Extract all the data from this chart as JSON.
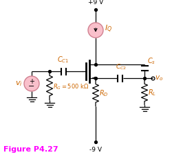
{
  "title": "Figure P4.27",
  "title_color": "#FF00FF",
  "bg_color": "#FFFFFF",
  "line_color": "#000000",
  "pink_fill": "#F9C0CB",
  "pink_stroke": "#D08090",
  "label_color": "#CC6600",
  "plus9v_text": "+9 V",
  "minus9v_text": "-9 V",
  "IQ_label": "$I_Q$",
  "CC1_label": "$C_{C1}$",
  "CC2_label": "$C_{C2}$",
  "CS_label": "$C_s$",
  "RG_label": "$R_G = 500\\ \\mathrm{k\\Omega}$",
  "RD_label": "$R_D$",
  "RL_label": "$R_L$",
  "vi_label": "$v_i$",
  "vo_label": "$v_o$"
}
